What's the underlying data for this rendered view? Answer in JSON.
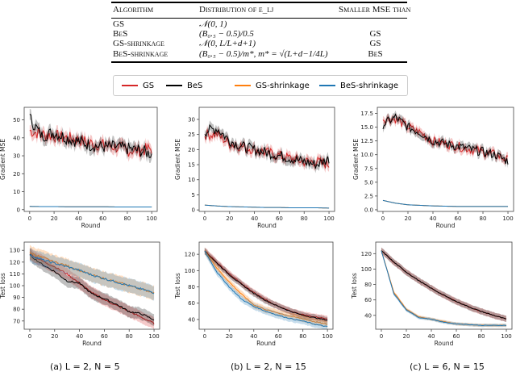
{
  "table": {
    "headers": [
      "Algorithm",
      "Distribution of ε_lj",
      "Smaller MSE than"
    ],
    "rows": [
      {
        "algorithm": "GS",
        "distribution": "𝒩(0, 1)",
        "smaller": ""
      },
      {
        "algorithm": "BeS",
        "distribution": "(B₀.₅ − 0.5)/0.5",
        "smaller": "GS"
      },
      {
        "algorithm": "GS-shrinkage",
        "distribution": "𝒩(0, L/L+d+1)",
        "smaller": "GS"
      },
      {
        "algorithm": "BeS-shrinkage",
        "distribution": "(B₀.₅ − 0.5)/m*, m* = √(L+d−1/4L)",
        "smaller": "BeS"
      }
    ]
  },
  "legend": [
    {
      "name": "GS",
      "color": "#d62728"
    },
    {
      "name": "BeS",
      "color": "#000000"
    },
    {
      "name": "GS-shrinkage",
      "color": "#ff7f0e"
    },
    {
      "name": "BeS-shrinkage",
      "color": "#1f77b4"
    }
  ],
  "captions": [
    "(a) L = 2, N = 5",
    "(b) L = 2, N = 15",
    "(c) L = 6, N = 15"
  ],
  "chart_data": [
    {
      "type": "line",
      "panel": "a-top",
      "xlabel": "Round",
      "ylabel": "Gradient MSE",
      "xlim": [
        0,
        100
      ],
      "ylim": [
        -1,
        57
      ],
      "xticks": [
        0,
        20,
        40,
        60,
        80,
        100
      ],
      "yticks": [
        0,
        10,
        20,
        30,
        40,
        50
      ],
      "x": [
        0,
        10,
        20,
        30,
        40,
        50,
        60,
        70,
        80,
        90,
        100
      ],
      "series": [
        {
          "name": "GS",
          "values": [
            44,
            42,
            41,
            40,
            39,
            37,
            36,
            35,
            33,
            33,
            34
          ],
          "band": 3
        },
        {
          "name": "BeS",
          "values": [
            51,
            41,
            43,
            40,
            38,
            36,
            35,
            35,
            34,
            33,
            31
          ],
          "band": 3
        },
        {
          "name": "GS-shrinkage",
          "values": [
            1.8,
            1.7,
            1.7,
            1.6,
            1.6,
            1.6,
            1.6,
            1.5,
            1.5,
            1.5,
            1.5
          ],
          "band": 0.2
        },
        {
          "name": "BeS-shrinkage",
          "values": [
            1.8,
            1.7,
            1.7,
            1.6,
            1.6,
            1.6,
            1.6,
            1.5,
            1.5,
            1.5,
            1.5
          ],
          "band": 0.2
        }
      ]
    },
    {
      "type": "line",
      "panel": "b-top",
      "xlabel": "Round",
      "ylabel": "Gradient MSE",
      "xlim": [
        0,
        100
      ],
      "ylim": [
        -0.5,
        34
      ],
      "xticks": [
        0,
        20,
        40,
        60,
        80,
        100
      ],
      "yticks": [
        0,
        5,
        10,
        15,
        20,
        25,
        30
      ],
      "x": [
        0,
        10,
        20,
        30,
        40,
        50,
        60,
        70,
        80,
        90,
        100
      ],
      "series": [
        {
          "name": "GS",
          "values": [
            25,
            25,
            22,
            21,
            20,
            19,
            18,
            17,
            16,
            16,
            15
          ],
          "band": 1.5
        },
        {
          "name": "BeS",
          "values": [
            26,
            27,
            23,
            21,
            20,
            19,
            18,
            17,
            16,
            15,
            17
          ],
          "band": 1.5
        },
        {
          "name": "GS-shrinkage",
          "values": [
            1.6,
            1.3,
            1.1,
            1.0,
            0.9,
            0.8,
            0.8,
            0.7,
            0.7,
            0.7,
            0.6
          ],
          "band": 0.1
        },
        {
          "name": "BeS-shrinkage",
          "values": [
            1.6,
            1.3,
            1.1,
            1.0,
            0.9,
            0.8,
            0.8,
            0.7,
            0.7,
            0.7,
            0.6
          ],
          "band": 0.1
        }
      ]
    },
    {
      "type": "line",
      "panel": "c-top",
      "xlabel": "Round",
      "ylabel": "Gradient MSE",
      "xlim": [
        0,
        100
      ],
      "ylim": [
        -0.3,
        18.6
      ],
      "xticks": [
        0,
        20,
        40,
        60,
        80,
        100
      ],
      "yticks": [
        0,
        2.5,
        5,
        7.5,
        10,
        12.5,
        15,
        17.5
      ],
      "x": [
        0,
        10,
        20,
        30,
        40,
        50,
        60,
        70,
        80,
        90,
        100
      ],
      "series": [
        {
          "name": "GS",
          "values": [
            16.5,
            16.5,
            15,
            14,
            12.5,
            12,
            11.5,
            11,
            10.5,
            10,
            9
          ],
          "band": 0.7
        },
        {
          "name": "BeS",
          "values": [
            15.5,
            16.8,
            15,
            14,
            12.5,
            12,
            11.5,
            11,
            10.5,
            10,
            8.8
          ],
          "band": 0.7
        },
        {
          "name": "GS-shrinkage",
          "values": [
            1.7,
            1.2,
            0.9,
            0.8,
            0.7,
            0.65,
            0.6,
            0.6,
            0.6,
            0.6,
            0.6
          ],
          "band": 0.08
        },
        {
          "name": "BeS-shrinkage",
          "values": [
            1.7,
            1.2,
            0.9,
            0.8,
            0.7,
            0.65,
            0.6,
            0.6,
            0.6,
            0.6,
            0.6
          ],
          "band": 0.08
        }
      ]
    },
    {
      "type": "line",
      "panel": "a-bottom",
      "xlabel": "Round",
      "ylabel": "Test loss",
      "xlim": [
        0,
        100
      ],
      "ylim": [
        63,
        137
      ],
      "xticks": [
        0,
        20,
        40,
        60,
        80,
        100
      ],
      "yticks": [
        70,
        80,
        90,
        100,
        110,
        120,
        130
      ],
      "x": [
        0,
        10,
        20,
        30,
        40,
        50,
        60,
        70,
        80,
        90,
        100
      ],
      "series": [
        {
          "name": "GS",
          "values": [
            127,
            121,
            116,
            110,
            102,
            94,
            88,
            83,
            78,
            73,
            68
          ],
          "band": 5
        },
        {
          "name": "BeS",
          "values": [
            126,
            118,
            112,
            104,
            102,
            93,
            89,
            84,
            78,
            76,
            71
          ],
          "band": 5
        },
        {
          "name": "GS-shrinkage",
          "values": [
            128,
            124,
            120,
            117,
            113,
            109,
            106,
            103,
            100,
            97,
            94
          ],
          "band": 6
        },
        {
          "name": "BeS-shrinkage",
          "values": [
            126,
            122,
            119,
            116,
            113,
            109,
            106,
            103,
            100,
            97,
            94
          ],
          "band": 6
        }
      ]
    },
    {
      "type": "line",
      "panel": "b-bottom",
      "xlabel": "Round",
      "ylabel": "Test loss",
      "xlim": [
        0,
        100
      ],
      "ylim": [
        28,
        135
      ],
      "xticks": [
        0,
        20,
        40,
        60,
        80,
        100
      ],
      "yticks": [
        40,
        60,
        80,
        100,
        120
      ],
      "x": [
        0,
        10,
        20,
        30,
        40,
        50,
        60,
        70,
        80,
        90,
        100
      ],
      "series": [
        {
          "name": "GS",
          "values": [
            125,
            110,
            96,
            84,
            73,
            64,
            56,
            50,
            46,
            43,
            41
          ],
          "band": 4
        },
        {
          "name": "BeS",
          "values": [
            124,
            109,
            95,
            83,
            72,
            63,
            56,
            50,
            45,
            42,
            39
          ],
          "band": 4
        },
        {
          "name": "GS-shrinkage",
          "values": [
            124,
            103,
            86,
            71,
            58,
            52,
            48,
            44,
            41,
            37,
            34
          ],
          "band": 4
        },
        {
          "name": "BeS-shrinkage",
          "values": [
            124,
            98,
            80,
            65,
            56,
            50,
            45,
            41,
            38,
            34,
            31
          ],
          "band": 4
        }
      ]
    },
    {
      "type": "line",
      "panel": "c-bottom",
      "xlabel": "Round",
      "ylabel": "Test loss",
      "xlim": [
        0,
        100
      ],
      "ylim": [
        22,
        135
      ],
      "xticks": [
        0,
        20,
        40,
        60,
        80,
        100
      ],
      "yticks": [
        40,
        60,
        80,
        100,
        120
      ],
      "x": [
        0,
        10,
        20,
        30,
        40,
        50,
        60,
        70,
        80,
        90,
        100
      ],
      "series": [
        {
          "name": "GS",
          "values": [
            124,
            109,
            96,
            85,
            75,
            66,
            58,
            51,
            45,
            40,
            35
          ],
          "band": 4
        },
        {
          "name": "BeS",
          "values": [
            124,
            109,
            96,
            85,
            75,
            66,
            58,
            51,
            45,
            40,
            35
          ],
          "band": 4
        },
        {
          "name": "GS-shrinkage",
          "values": [
            124,
            70,
            48,
            38,
            35,
            32,
            29,
            28,
            27,
            27,
            27
          ],
          "band": 2
        },
        {
          "name": "BeS-shrinkage",
          "values": [
            124,
            68,
            47,
            37,
            35,
            31,
            29,
            28,
            27,
            27,
            27
          ],
          "band": 2
        }
      ]
    }
  ]
}
